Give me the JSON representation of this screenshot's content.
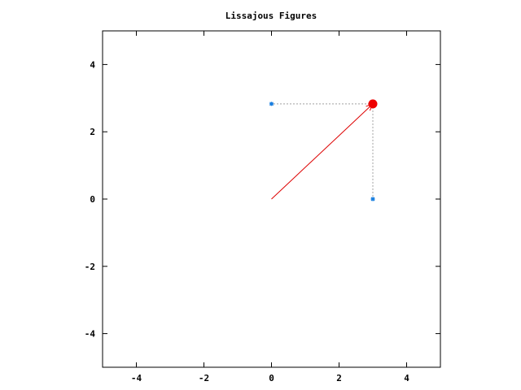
{
  "chart_data": {
    "type": "scatter",
    "title": "Lissajous Figures",
    "xlabel": "",
    "ylabel": "",
    "xlim": [
      -5,
      5
    ],
    "ylim": [
      -5,
      5
    ],
    "xticks": [
      -4,
      -2,
      0,
      2,
      4
    ],
    "yticks": [
      -4,
      -2,
      0,
      2,
      4
    ],
    "grid": false,
    "vector": {
      "from": [
        0,
        0
      ],
      "to": [
        3,
        2.83
      ],
      "color": "#dd0000"
    },
    "tip_point": {
      "x": 3,
      "y": 2.83,
      "color": "#ee0000"
    },
    "projections": [
      {
        "x": 0,
        "y": 2.83,
        "color": "#1a7fe0"
      },
      {
        "x": 3,
        "y": 0,
        "color": "#1a7fe0"
      }
    ],
    "guide_color": "#a0a0a0"
  }
}
